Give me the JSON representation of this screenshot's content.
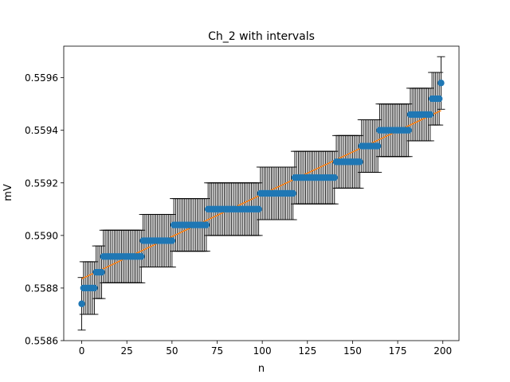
{
  "chart_data": {
    "type": "scatter",
    "title": "Ch_2 with intervals",
    "xlabel": "n",
    "ylabel": "mV",
    "xlim": [
      -9.95,
      208.95
    ],
    "ylim": [
      0.5586,
      0.55972
    ],
    "x_ticks": [
      0,
      25,
      50,
      75,
      100,
      125,
      150,
      175,
      200
    ],
    "y_ticks": [
      0.5586,
      0.5588,
      0.559,
      0.5592,
      0.5594,
      0.5596
    ],
    "y_tick_labels": [
      "0.5586",
      "0.5588",
      "0.5590",
      "0.5592",
      "0.5594",
      "0.5596"
    ],
    "grid": false,
    "error_half_width": 0.0001,
    "steps": [
      {
        "start": 0,
        "end": 0,
        "value": 0.55874
      },
      {
        "start": 1,
        "end": 7,
        "value": 0.5588
      },
      {
        "start": 8,
        "end": 11,
        "value": 0.55886
      },
      {
        "start": 12,
        "end": 33,
        "value": 0.55892
      },
      {
        "start": 34,
        "end": 50,
        "value": 0.55898
      },
      {
        "start": 51,
        "end": 69,
        "value": 0.55904
      },
      {
        "start": 70,
        "end": 98,
        "value": 0.5591
      },
      {
        "start": 99,
        "end": 117,
        "value": 0.55916
      },
      {
        "start": 118,
        "end": 140,
        "value": 0.55922
      },
      {
        "start": 141,
        "end": 154,
        "value": 0.55928
      },
      {
        "start": 155,
        "end": 164,
        "value": 0.55934
      },
      {
        "start": 165,
        "end": 181,
        "value": 0.5594
      },
      {
        "start": 182,
        "end": 193,
        "value": 0.55946
      },
      {
        "start": 194,
        "end": 198,
        "value": 0.55952
      },
      {
        "start": 199,
        "end": 199,
        "value": 0.55958
      }
    ],
    "fit_line": {
      "x": [
        0,
        199
      ],
      "y": [
        0.558835,
        0.559475
      ]
    },
    "colors": {
      "points": "#1f77b4",
      "fit": "#ff7f0e",
      "errorbars": "#000000"
    }
  }
}
